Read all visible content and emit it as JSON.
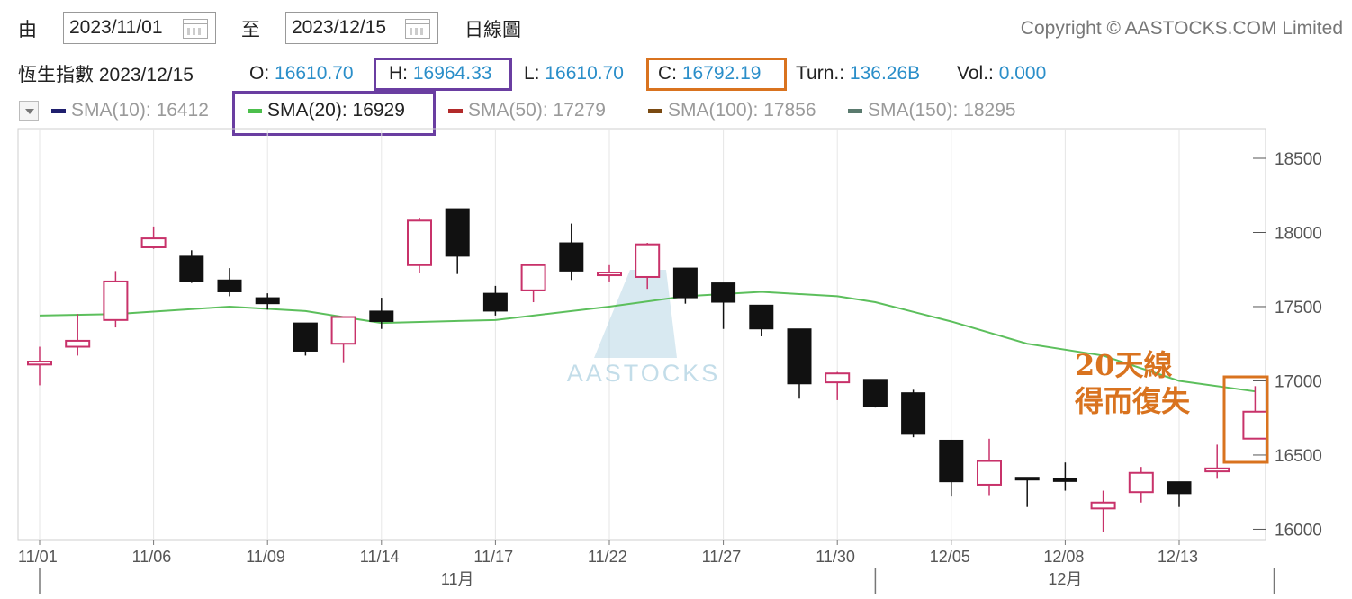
{
  "toolbar": {
    "from_label": "由",
    "from_date": "2023/11/01",
    "to_label": "至",
    "to_date": "2023/12/15",
    "chart_kind": "日線圖",
    "copyright": "Copyright © AASTOCKS.COM Limited"
  },
  "quote": {
    "name_date": "恆生指數 2023/12/15",
    "o_label": "O:",
    "o": "16610.70",
    "h_label": "H:",
    "h": "16964.33",
    "l_label": "L:",
    "l": "16610.70",
    "c_label": "C:",
    "c": "16792.19",
    "turn_label": "Turn.:",
    "turn": "136.26B",
    "vol_label": "Vol.:",
    "vol": "0.000"
  },
  "sma": [
    {
      "label": "SMA(10): 16412",
      "color": "#1f1f6e",
      "active": false
    },
    {
      "label": "SMA(20): 16929",
      "color": "#4cbf4c",
      "active": true
    },
    {
      "label": "SMA(50): 17279",
      "color": "#b22a2a",
      "active": false
    },
    {
      "label": "SMA(100): 17856",
      "color": "#7a4a12",
      "active": false
    },
    {
      "label": "SMA(150): 18295",
      "color": "#5a7a6e",
      "active": false
    }
  ],
  "annotation": {
    "line1": "20天線",
    "line2": "得而復失",
    "color": "#d9731f"
  },
  "watermark": "AASTOCKS",
  "highlight_colors": {
    "purple": "#6a3ea1",
    "orange": "#d9731f"
  },
  "chart_data": {
    "type": "candlestick",
    "y_ticks": [
      16000,
      16500,
      17000,
      17500,
      18000,
      18500
    ],
    "y_tick_labels": [
      "16000",
      "16500",
      "17000",
      "17500",
      "18000",
      "18500"
    ],
    "ylim": [
      15930,
      18700
    ],
    "x_tick_labels": [
      {
        "index": 0,
        "label": "11/01"
      },
      {
        "index": 3,
        "label": "11/06"
      },
      {
        "index": 6,
        "label": "11/09"
      },
      {
        "index": 9,
        "label": "11/14"
      },
      {
        "index": 12,
        "label": "11/17"
      },
      {
        "index": 15,
        "label": "11/22"
      },
      {
        "index": 18,
        "label": "11/27"
      },
      {
        "index": 21,
        "label": "11/30"
      },
      {
        "index": 24,
        "label": "12/05"
      },
      {
        "index": 27,
        "label": "12/08"
      },
      {
        "index": 30,
        "label": "12/13"
      }
    ],
    "month_labels": [
      {
        "center_index": 11,
        "label": "11月"
      },
      {
        "center_index": 27,
        "label": "12月"
      }
    ],
    "month_dividers": [
      0,
      22,
      32.5
    ],
    "candles": [
      {
        "o": 17110,
        "h": 17230,
        "l": 16970,
        "c": 17130
      },
      {
        "o": 17230,
        "h": 17450,
        "l": 17170,
        "c": 17270
      },
      {
        "o": 17410,
        "h": 17740,
        "l": 17360,
        "c": 17670
      },
      {
        "o": 17900,
        "h": 18040,
        "l": 17890,
        "c": 17960
      },
      {
        "o": 17840,
        "h": 17880,
        "l": 17660,
        "c": 17670
      },
      {
        "o": 17680,
        "h": 17760,
        "l": 17570,
        "c": 17600
      },
      {
        "o": 17560,
        "h": 17590,
        "l": 17480,
        "c": 17520
      },
      {
        "o": 17390,
        "h": 17390,
        "l": 17170,
        "c": 17200
      },
      {
        "o": 17250,
        "h": 17430,
        "l": 17120,
        "c": 17430
      },
      {
        "o": 17470,
        "h": 17560,
        "l": 17350,
        "c": 17400
      },
      {
        "o": 17780,
        "h": 18100,
        "l": 17730,
        "c": 18080
      },
      {
        "o": 18160,
        "h": 18160,
        "l": 17720,
        "c": 17840
      },
      {
        "o": 17590,
        "h": 17640,
        "l": 17440,
        "c": 17470
      },
      {
        "o": 17610,
        "h": 17780,
        "l": 17530,
        "c": 17780
      },
      {
        "o": 17930,
        "h": 18060,
        "l": 17680,
        "c": 17740
      },
      {
        "o": 17720,
        "h": 17780,
        "l": 17670,
        "c": 17730
      },
      {
        "o": 17700,
        "h": 17930,
        "l": 17620,
        "c": 17920
      },
      {
        "o": 17760,
        "h": 17760,
        "l": 17520,
        "c": 17560
      },
      {
        "o": 17660,
        "h": 17660,
        "l": 17350,
        "c": 17530
      },
      {
        "o": 17510,
        "h": 17510,
        "l": 17300,
        "c": 17350
      },
      {
        "o": 17350,
        "h": 17350,
        "l": 16880,
        "c": 16980
      },
      {
        "o": 16990,
        "h": 17060,
        "l": 16870,
        "c": 17050
      },
      {
        "o": 17010,
        "h": 17010,
        "l": 16820,
        "c": 16830
      },
      {
        "o": 16920,
        "h": 16940,
        "l": 16620,
        "c": 16640
      },
      {
        "o": 16600,
        "h": 16600,
        "l": 16220,
        "c": 16320
      },
      {
        "o": 16300,
        "h": 16610,
        "l": 16230,
        "c": 16460
      },
      {
        "o": 16350,
        "h": 16350,
        "l": 16150,
        "c": 16340
      },
      {
        "o": 16340,
        "h": 16450,
        "l": 16260,
        "c": 16330
      },
      {
        "o": 16140,
        "h": 16260,
        "l": 15980,
        "c": 16180
      },
      {
        "o": 16250,
        "h": 16420,
        "l": 16180,
        "c": 16380
      },
      {
        "o": 16320,
        "h": 16320,
        "l": 16150,
        "c": 16240
      },
      {
        "o": 16390,
        "h": 16570,
        "l": 16340,
        "c": 16410
      },
      {
        "o": 16610.7,
        "h": 16964.33,
        "l": 16610.7,
        "c": 16792.19
      }
    ],
    "sma20": [
      [
        0,
        17440
      ],
      [
        2,
        17450
      ],
      [
        5,
        17500
      ],
      [
        7,
        17470
      ],
      [
        9,
        17390
      ],
      [
        12,
        17410
      ],
      [
        15,
        17500
      ],
      [
        17,
        17570
      ],
      [
        19,
        17600
      ],
      [
        21,
        17570
      ],
      [
        22,
        17530
      ],
      [
        24,
        17400
      ],
      [
        26,
        17250
      ],
      [
        28,
        17170
      ],
      [
        30,
        17000
      ],
      [
        32,
        16929
      ]
    ]
  }
}
